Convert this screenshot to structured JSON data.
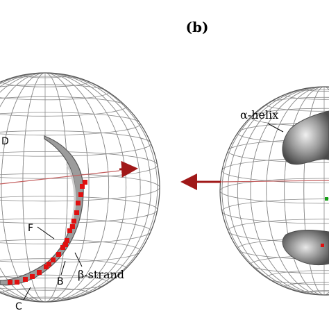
{
  "panel_label": "(b)",
  "labels": {
    "d": "D",
    "f": "F",
    "b": "B",
    "c": "C",
    "beta_strand": "β-strand",
    "alpha_helix": "α-helix"
  },
  "colors": {
    "grid": "#8a8a8a",
    "sphere_outline": "#555555",
    "density_dark": "#5a5a5a",
    "density_light": "#bdbdbd",
    "highlight": "#e01010",
    "axis_arrow": "#a01818",
    "accent_green": "#18a018"
  }
}
